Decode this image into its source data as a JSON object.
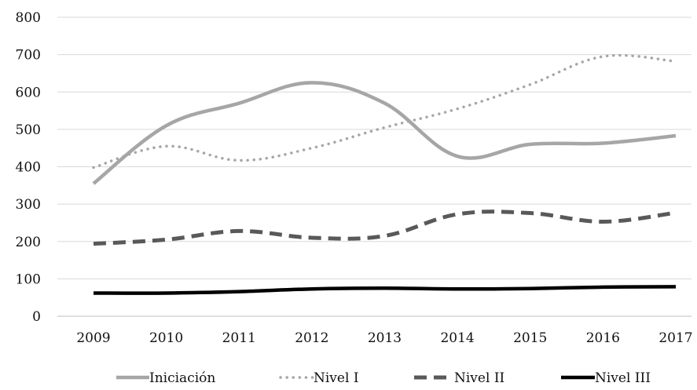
{
  "chart_data": {
    "type": "line",
    "title": "",
    "xlabel": "",
    "ylabel": "",
    "categories": [
      "2009",
      "2010",
      "2011",
      "2012",
      "2013",
      "2014",
      "2015",
      "2016",
      "2017"
    ],
    "ylim": [
      0,
      800
    ],
    "yticks": [
      0,
      100,
      200,
      300,
      400,
      500,
      600,
      700,
      800
    ],
    "grid": "horizontal",
    "legend_position": "bottom",
    "series": [
      {
        "name": "Iniciación",
        "values": [
          355,
          510,
          570,
          625,
          570,
          428,
          460,
          463,
          483
        ],
        "color": "#a6a6a6",
        "style": "solid"
      },
      {
        "name": "Nivel I",
        "values": [
          398,
          455,
          417,
          450,
          505,
          555,
          620,
          695,
          682
        ],
        "color": "#a6a6a6",
        "style": "dotted"
      },
      {
        "name": "Nivel II",
        "values": [
          194,
          205,
          228,
          210,
          215,
          273,
          276,
          253,
          277
        ],
        "color": "#595959",
        "style": "dashed"
      },
      {
        "name": "Nivel III",
        "values": [
          62,
          62,
          66,
          73,
          75,
          73,
          74,
          78,
          79
        ],
        "color": "#000000",
        "style": "solid"
      }
    ]
  }
}
